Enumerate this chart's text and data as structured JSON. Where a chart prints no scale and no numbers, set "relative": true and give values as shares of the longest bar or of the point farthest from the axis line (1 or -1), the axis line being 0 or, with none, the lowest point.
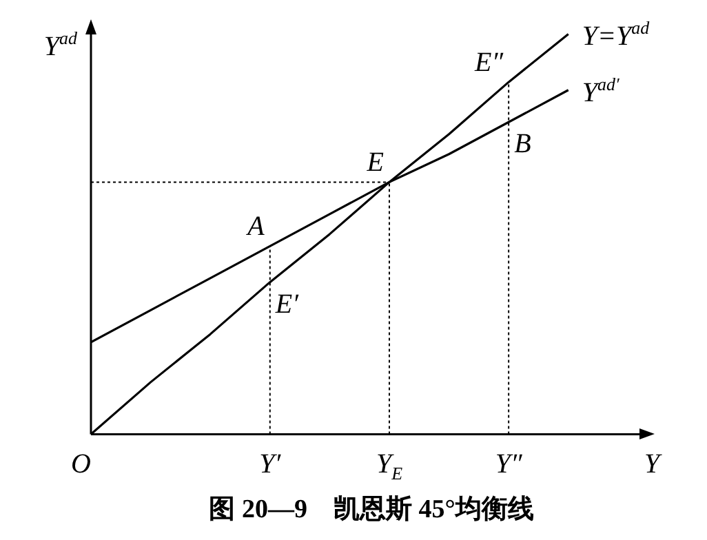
{
  "chart_data": {
    "type": "line",
    "relative": true,
    "title": "图 20—9　凯恩斯 45°均衡线",
    "xlabel": "Y",
    "ylabel": "Y$^{ad}$",
    "categories": [
      "O",
      null,
      null,
      "Y′",
      null,
      "Y$_{E}$",
      null,
      "Y″",
      null
    ],
    "series": [
      {
        "name": "Y=Y$^{ad}$",
        "color": "#000000",
        "values": [
          0,
          0.13,
          0.25,
          0.38,
          0.5,
          0.63,
          0.75,
          0.88,
          1
        ]
      },
      {
        "name": "Y$^{ad′}$",
        "color": "#000000",
        "values": [
          0.23,
          0.31,
          0.39,
          0.47,
          0.55,
          0.63,
          0.7,
          0.78,
          0.86
        ]
      }
    ],
    "ref_lines": [
      {
        "axis": "y",
        "value": 0.63,
        "line_style": "dotted"
      },
      {
        "axis": "x",
        "value": "Y′",
        "line_style": "dotted"
      },
      {
        "axis": "x",
        "value": "Y$_{E}$",
        "line_style": "dotted"
      },
      {
        "axis": "x",
        "value": "Y″",
        "line_style": "dotted"
      }
    ],
    "annotations": [
      {
        "text": "A",
        "x": "Y′",
        "y": 0.47
      },
      {
        "text": "E′",
        "x": "Y′",
        "y": 0.38
      },
      {
        "text": "E",
        "x": "Y$_{E}$",
        "y": 0.63
      },
      {
        "text": "B",
        "x": "Y″",
        "y": 0.78
      },
      {
        "text": "E″",
        "x": "Y″",
        "y": 0.88
      }
    ],
    "legend": false,
    "marker": "none",
    "line_style": "solid"
  }
}
